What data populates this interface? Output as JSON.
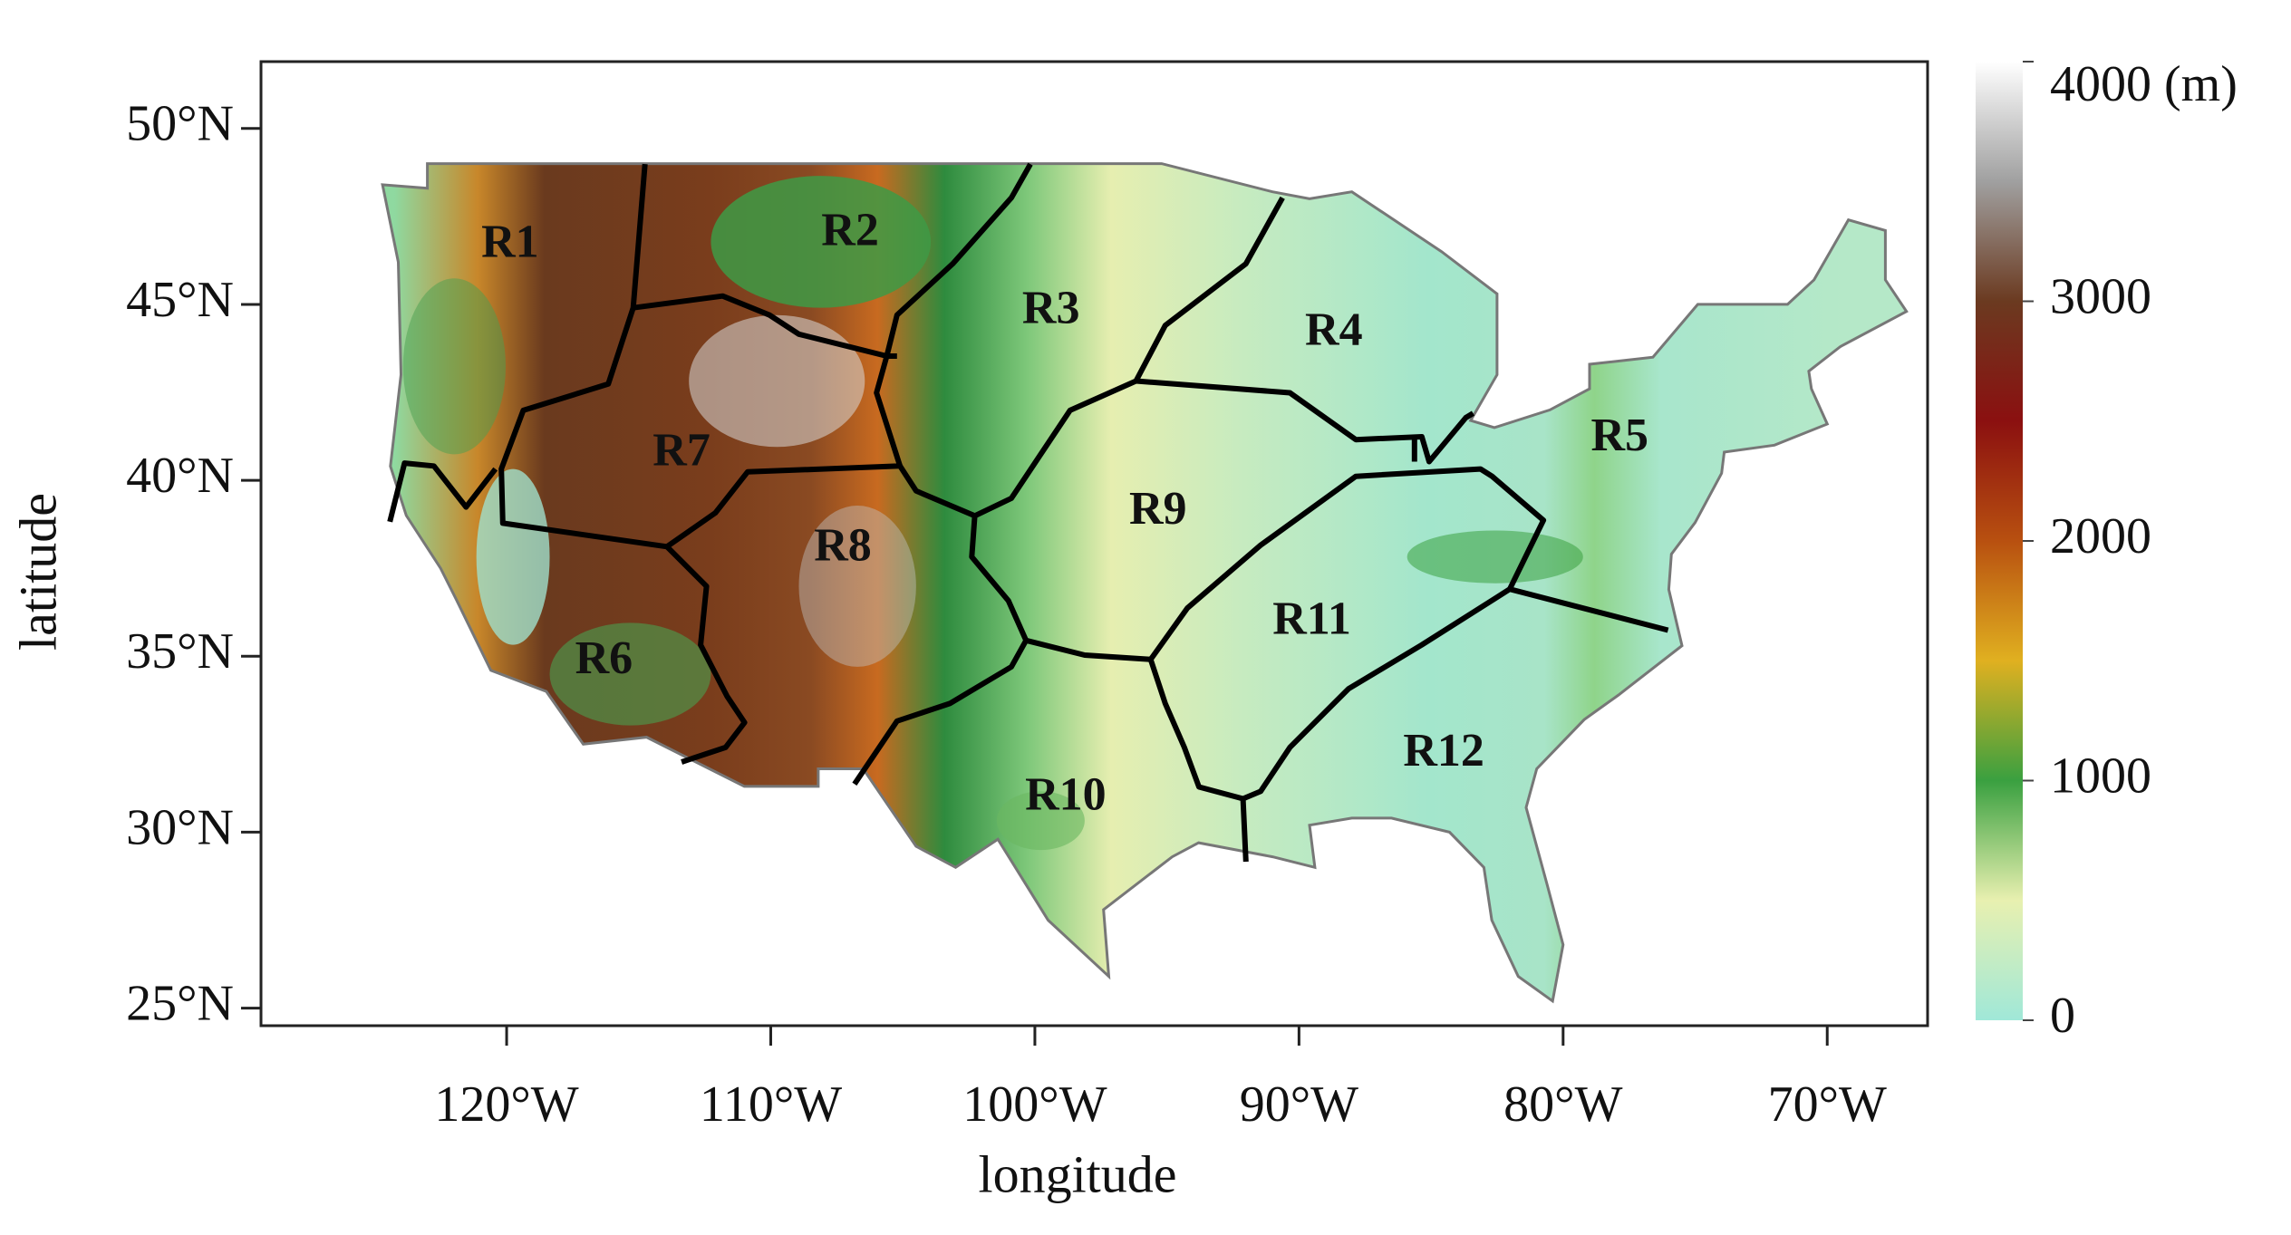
{
  "chart_data": {
    "type": "map",
    "xlabel": "longitude",
    "ylabel": "latitude",
    "xlim": [
      -129.3,
      -66.2
    ],
    "ylim": [
      24.5,
      51.9
    ],
    "xticks": [
      {
        "value": -120,
        "label": "120°W"
      },
      {
        "value": -110,
        "label": "110°W"
      },
      {
        "value": -100,
        "label": "100°W"
      },
      {
        "value": -90,
        "label": "90°W"
      },
      {
        "value": -80,
        "label": "80°W"
      },
      {
        "value": -70,
        "label": "70°W"
      }
    ],
    "yticks": [
      {
        "value": 25,
        "label": "25°N"
      },
      {
        "value": 30,
        "label": "30°N"
      },
      {
        "value": 35,
        "label": "35°N"
      },
      {
        "value": 40,
        "label": "40°N"
      },
      {
        "value": 45,
        "label": "45°N"
      },
      {
        "value": 50,
        "label": "50°N"
      }
    ],
    "region_labels": [
      "R1",
      "R2",
      "R3",
      "R4",
      "R5",
      "R6",
      "R7",
      "R8",
      "R9",
      "R10",
      "R11",
      "R12"
    ],
    "colorbar": {
      "clim": [
        0,
        4000
      ],
      "ticks": [
        0,
        1000,
        2000,
        3000,
        {
          "value": 4000,
          "label": "4000 (m)"
        }
      ],
      "colors": [
        "#a0e8d8",
        "#e8f0b0",
        "#3aa040",
        "#e0b020",
        "#b85010",
        "#8b1010",
        "#6b3a20",
        "#a0a0a0",
        "#ffffff"
      ]
    }
  }
}
